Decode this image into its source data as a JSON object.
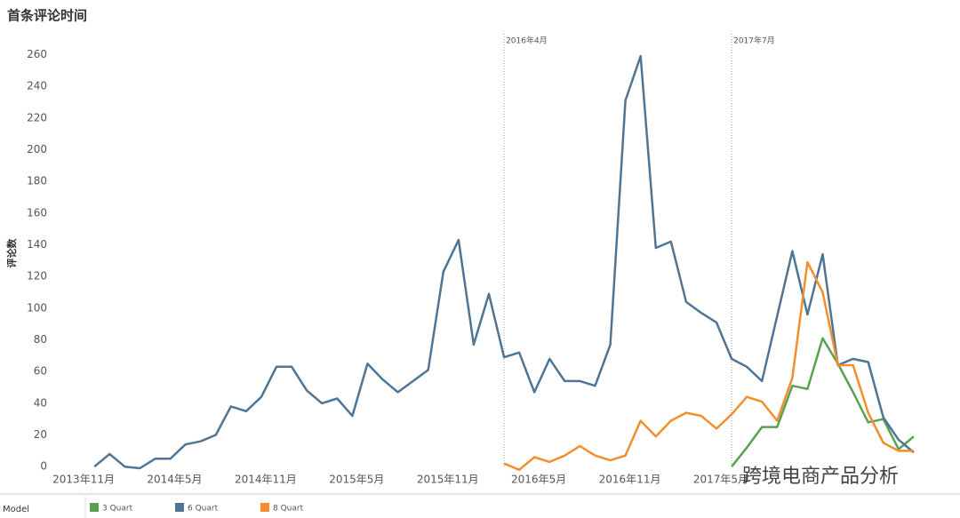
{
  "chart_data": {
    "type": "line",
    "title": "首条评论时间",
    "y_label": "评论数",
    "x": [
      "2014-01",
      "2014-02",
      "2014-03",
      "2014-04",
      "2014-05",
      "2014-06",
      "2014-07",
      "2014-08",
      "2014-09",
      "2014-10",
      "2014-11",
      "2014-12",
      "2015-01",
      "2015-02",
      "2015-03",
      "2015-04",
      "2015-05",
      "2015-06",
      "2015-07",
      "2015-08",
      "2015-09",
      "2015-10",
      "2015-11",
      "2015-12",
      "2016-01",
      "2016-02",
      "2016-03",
      "2016-04",
      "2016-05",
      "2016-06",
      "2016-07",
      "2016-08",
      "2016-09",
      "2016-10",
      "2016-11",
      "2016-12",
      "2017-01",
      "2017-02",
      "2017-03",
      "2017-04",
      "2017-05",
      "2017-06",
      "2017-07",
      "2017-08",
      "2017-09",
      "2017-10",
      "2017-11",
      "2017-12",
      "2018-01",
      "2018-02",
      "2018-03",
      "2018-04",
      "2018-05",
      "2018-06",
      "2018-07"
    ],
    "series": [
      {
        "name": "3 Quart",
        "color": "#59a14f",
        "values": [
          null,
          null,
          null,
          null,
          null,
          null,
          null,
          null,
          null,
          null,
          null,
          null,
          null,
          null,
          null,
          null,
          null,
          null,
          null,
          null,
          null,
          null,
          null,
          null,
          null,
          null,
          null,
          null,
          null,
          null,
          null,
          null,
          null,
          null,
          null,
          null,
          null,
          null,
          null,
          null,
          null,
          null,
          0,
          12,
          25,
          25,
          51,
          49,
          81,
          65,
          47,
          28,
          30,
          11,
          19
        ]
      },
      {
        "name": "6 Quart",
        "color": "#4e7596",
        "values": [
          0,
          8,
          0,
          -1,
          5,
          5,
          14,
          16,
          20,
          38,
          35,
          44,
          63,
          63,
          48,
          40,
          43,
          32,
          65,
          55,
          47,
          54,
          61,
          123,
          143,
          77,
          109,
          69,
          72,
          47,
          68,
          54,
          54,
          51,
          77,
          231,
          259,
          138,
          142,
          104,
          97,
          91,
          68,
          63,
          54,
          95,
          136,
          96,
          134,
          64,
          68,
          66,
          31,
          17,
          9
        ]
      },
      {
        "name": "8 Quart",
        "color": "#f28e2b",
        "values": [
          null,
          null,
          null,
          null,
          null,
          null,
          null,
          null,
          null,
          null,
          null,
          null,
          null,
          null,
          null,
          null,
          null,
          null,
          null,
          null,
          null,
          null,
          null,
          null,
          null,
          null,
          null,
          2,
          -2,
          6,
          3,
          7,
          13,
          7,
          4,
          7,
          29,
          19,
          29,
          34,
          32,
          24,
          33,
          44,
          41,
          29,
          56,
          129,
          110,
          64,
          64,
          34,
          15,
          10,
          10
        ]
      }
    ],
    "xlim": [
      "2013-10",
      "2018-08"
    ],
    "xticks": [
      {
        "value": "2013-11",
        "label": "2013年11月"
      },
      {
        "value": "2014-05",
        "label": "2014年5月"
      },
      {
        "value": "2014-11",
        "label": "2014年11月"
      },
      {
        "value": "2015-05",
        "label": "2015年5月"
      },
      {
        "value": "2015-11",
        "label": "2015年11月"
      },
      {
        "value": "2016-05",
        "label": "2016年5月"
      },
      {
        "value": "2016-11",
        "label": "2016年11月"
      },
      {
        "value": "2017-05",
        "label": "2017年5月"
      }
    ],
    "ylim": [
      -1,
      272
    ],
    "yticks": [
      0,
      20,
      40,
      60,
      80,
      100,
      120,
      140,
      160,
      180,
      200,
      220,
      240,
      260
    ],
    "grid": false,
    "reference_lines": [
      {
        "x": "2016-04",
        "label": "2016年4月"
      },
      {
        "x": "2017-07",
        "label": "2017年7月"
      }
    ],
    "legend_title": "Model",
    "watermark": "跨境电商产品分析"
  }
}
